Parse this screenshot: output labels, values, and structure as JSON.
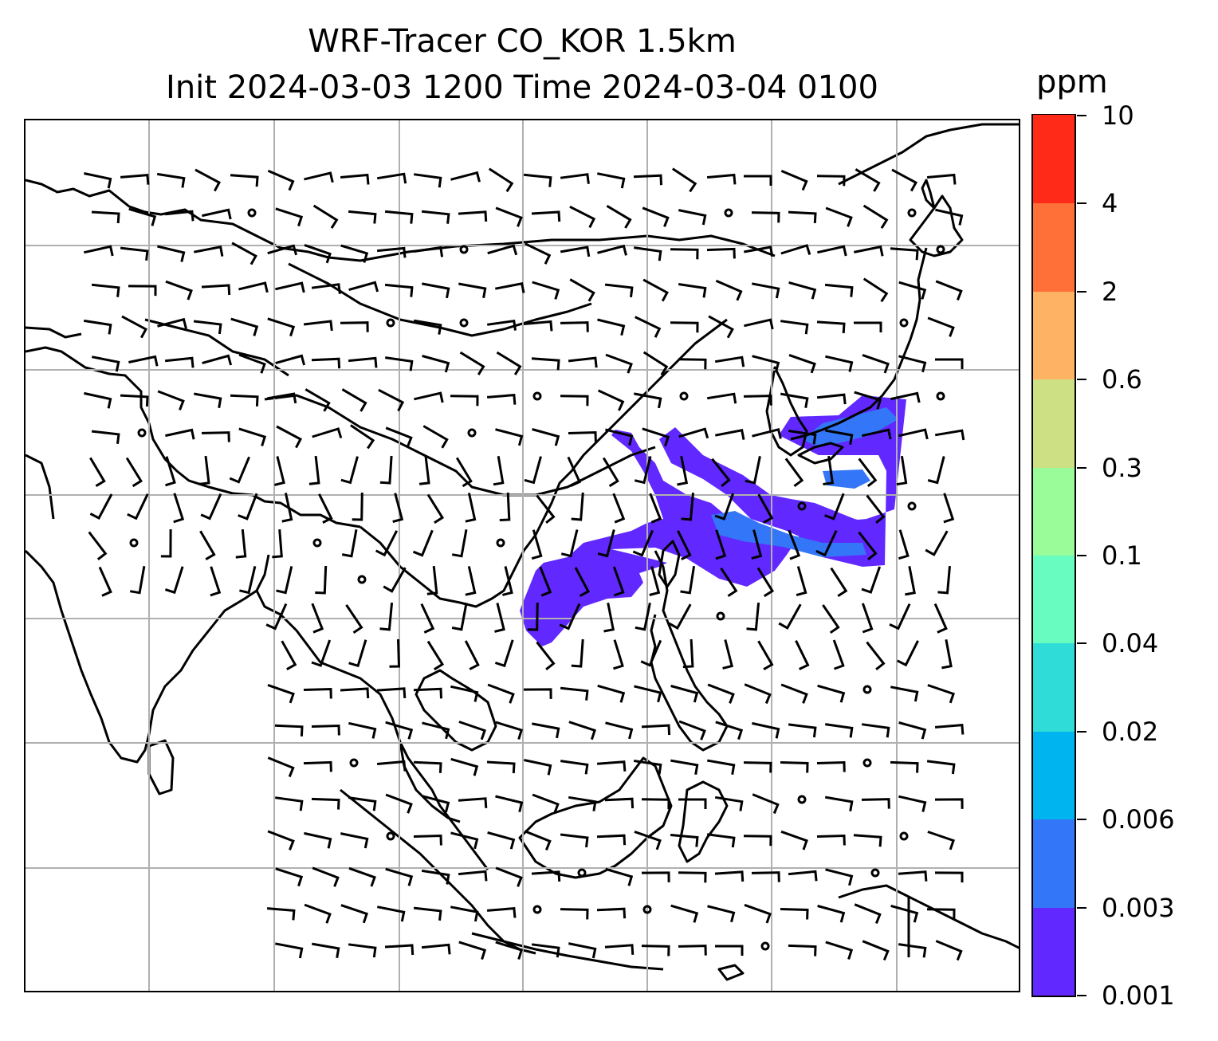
{
  "title": {
    "line1": "WRF-Tracer CO_KOR 1.5km",
    "line2": "Init 2024-03-03 1200 Time 2024-03-04 0100"
  },
  "colorbar": {
    "unit": "ppm",
    "levels": [
      "0.001",
      "0.003",
      "0.006",
      "0.02",
      "0.04",
      "0.1",
      "0.3",
      "0.6",
      "2",
      "4",
      "10"
    ],
    "colors": [
      "#6128ff",
      "#3476f8",
      "#00b4f0",
      "#2fdcd8",
      "#69fcc0",
      "#99fc99",
      "#cde184",
      "#feb264",
      "#ff7038",
      "#ff2a17"
    ]
  },
  "map": {
    "gridlines": true,
    "grid_color": "#b0b0b0",
    "coastline_color": "#000000",
    "wind_barbs": true
  }
}
